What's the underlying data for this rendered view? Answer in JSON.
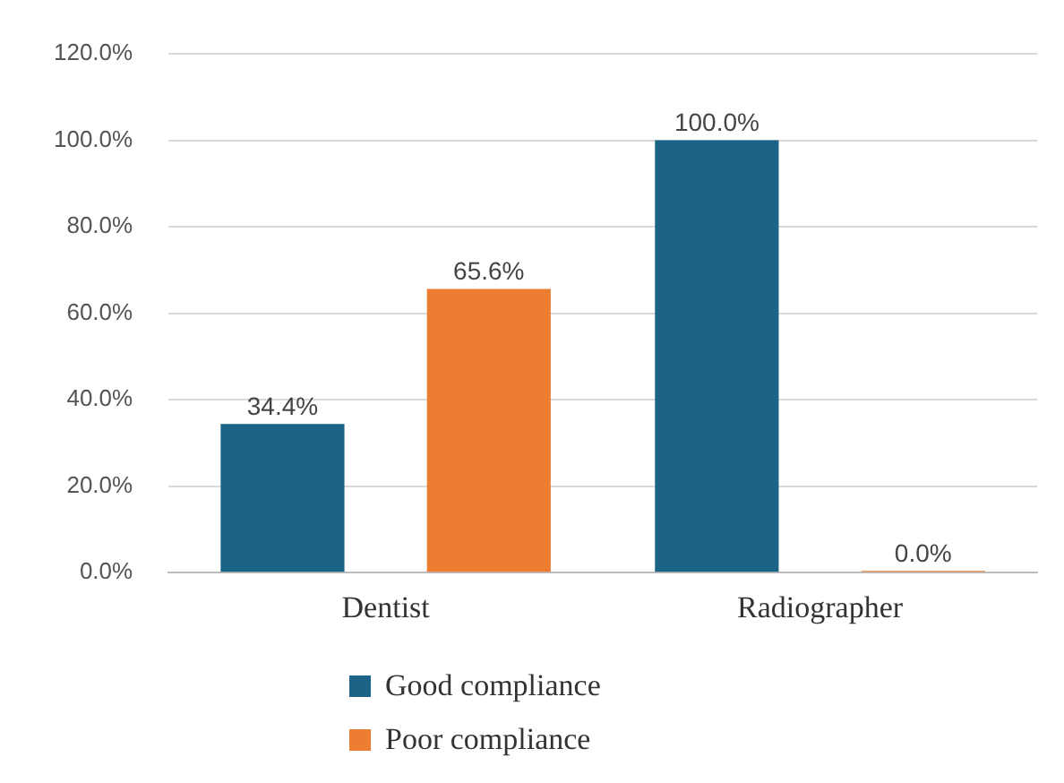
{
  "chart_data": {
    "type": "bar",
    "categories": [
      "Dentist",
      "Radiographer"
    ],
    "series": [
      {
        "name": "Good compliance",
        "color": "#1b6487",
        "values": [
          34.4,
          100.0
        ],
        "value_labels": [
          "34.4%",
          "100.0%"
        ]
      },
      {
        "name": "Poor compliance",
        "color": "#ed7d31",
        "values": [
          65.6,
          0.0
        ],
        "value_labels": [
          "65.6%",
          "0.0%"
        ]
      }
    ],
    "ylim": [
      0,
      120
    ],
    "yticks": [
      {
        "value": 0,
        "label": "0.0%"
      },
      {
        "value": 20,
        "label": "20.0%"
      },
      {
        "value": 40,
        "label": "40.0%"
      },
      {
        "value": 60,
        "label": "60.0%"
      },
      {
        "value": 80,
        "label": "80.0%"
      },
      {
        "value": 100,
        "label": "100.0%"
      },
      {
        "value": 120,
        "label": "120.0%"
      }
    ],
    "grid": "y",
    "legend": "bottom"
  }
}
